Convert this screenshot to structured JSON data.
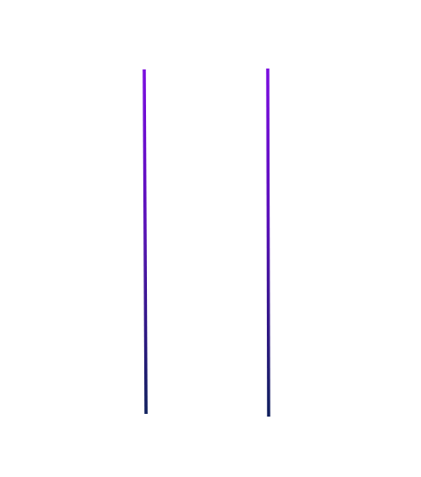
{
  "game": {
    "type": "tic-tac-toe",
    "board_state": [
      [
        "",
        "",
        ""
      ],
      [
        "",
        "",
        ""
      ],
      [
        "",
        "",
        ""
      ]
    ]
  },
  "colors": {
    "background": "#ffffff",
    "line_top": "#7a0ddf",
    "line_bottom": "#0f1f5c",
    "horizontal_line": "#6c14d6"
  }
}
